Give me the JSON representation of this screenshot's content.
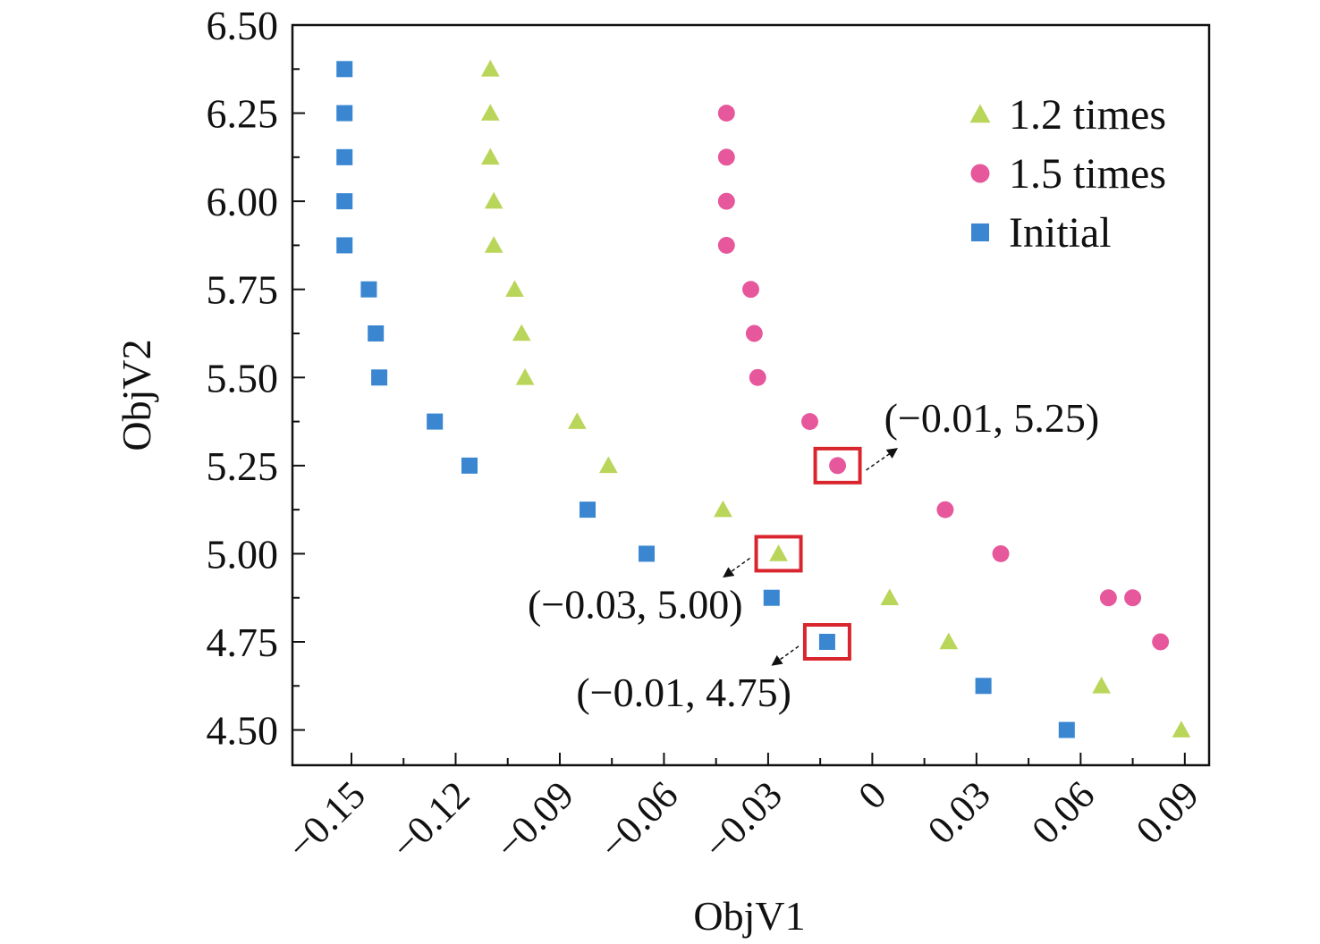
{
  "chart_data": {
    "type": "scatter",
    "xlabel": "ObjV1",
    "ylabel": "ObjV2",
    "xlim": [
      -0.167,
      0.097
    ],
    "ylim": [
      4.4,
      6.5
    ],
    "x_ticks": [
      -0.15,
      -0.12,
      -0.09,
      -0.06,
      -0.03,
      0,
      0.03,
      0.06,
      0.09
    ],
    "x_tick_labels": [
      "−0.15",
      "−0.12",
      "−0.09",
      "−0.06",
      "−0.03",
      "0",
      "0.03",
      "0.06",
      "0.09"
    ],
    "y_ticks": [
      4.5,
      4.75,
      5.0,
      5.25,
      5.5,
      5.75,
      6.0,
      6.25,
      6.5
    ],
    "y_tick_labels": [
      "4.50",
      "4.75",
      "5.00",
      "5.25",
      "5.50",
      "5.75",
      "6.00",
      "6.25",
      "6.50"
    ],
    "legend_position": "top-right",
    "series": [
      {
        "name": "1.2 times",
        "marker": "triangle",
        "color": "#b9d65a",
        "points": [
          [
            -0.11,
            6.375
          ],
          [
            -0.11,
            6.25
          ],
          [
            -0.11,
            6.125
          ],
          [
            -0.109,
            6.0
          ],
          [
            -0.109,
            5.875
          ],
          [
            -0.103,
            5.75
          ],
          [
            -0.101,
            5.625
          ],
          [
            -0.1,
            5.5
          ],
          [
            -0.085,
            5.375
          ],
          [
            -0.076,
            5.25
          ],
          [
            -0.043,
            5.125
          ],
          [
            -0.027,
            5.0
          ],
          [
            0.005,
            4.875
          ],
          [
            0.022,
            4.75
          ],
          [
            0.066,
            4.625
          ],
          [
            0.089,
            4.5
          ]
        ]
      },
      {
        "name": "1.5 times",
        "marker": "circle",
        "color": "#e6579b",
        "points": [
          [
            -0.042,
            6.25
          ],
          [
            -0.042,
            6.125
          ],
          [
            -0.042,
            6.0
          ],
          [
            -0.042,
            5.875
          ],
          [
            -0.035,
            5.75
          ],
          [
            -0.034,
            5.625
          ],
          [
            -0.033,
            5.5
          ],
          [
            -0.018,
            5.375
          ],
          [
            -0.01,
            5.25
          ],
          [
            0.021,
            5.125
          ],
          [
            0.037,
            5.0
          ],
          [
            0.068,
            4.875
          ],
          [
            0.075,
            4.875
          ],
          [
            0.083,
            4.75
          ]
        ]
      },
      {
        "name": "Initial",
        "marker": "square",
        "color": "#3a86d1",
        "points": [
          [
            -0.152,
            6.375
          ],
          [
            -0.152,
            6.25
          ],
          [
            -0.152,
            6.125
          ],
          [
            -0.152,
            6.0
          ],
          [
            -0.152,
            5.875
          ],
          [
            -0.145,
            5.75
          ],
          [
            -0.143,
            5.625
          ],
          [
            -0.142,
            5.5
          ],
          [
            -0.126,
            5.375
          ],
          [
            -0.116,
            5.25
          ],
          [
            -0.082,
            5.125
          ],
          [
            -0.065,
            5.0
          ],
          [
            -0.029,
            4.875
          ],
          [
            -0.013,
            4.75
          ],
          [
            0.032,
            4.625
          ],
          [
            0.056,
            4.5
          ]
        ]
      }
    ],
    "annotations": [
      {
        "text": "(−0.01, 5.25)",
        "x": -0.01,
        "y": 5.25,
        "series": "1.5 times",
        "label_side": "upper-right"
      },
      {
        "text": "(−0.03, 5.00)",
        "x": -0.027,
        "y": 5.0,
        "series": "1.2 times",
        "label_side": "lower-left"
      },
      {
        "text": "(−0.01, 4.75)",
        "x": -0.013,
        "y": 4.75,
        "series": "Initial",
        "label_side": "lower-left"
      }
    ],
    "highlight_color": "#d9262e"
  }
}
